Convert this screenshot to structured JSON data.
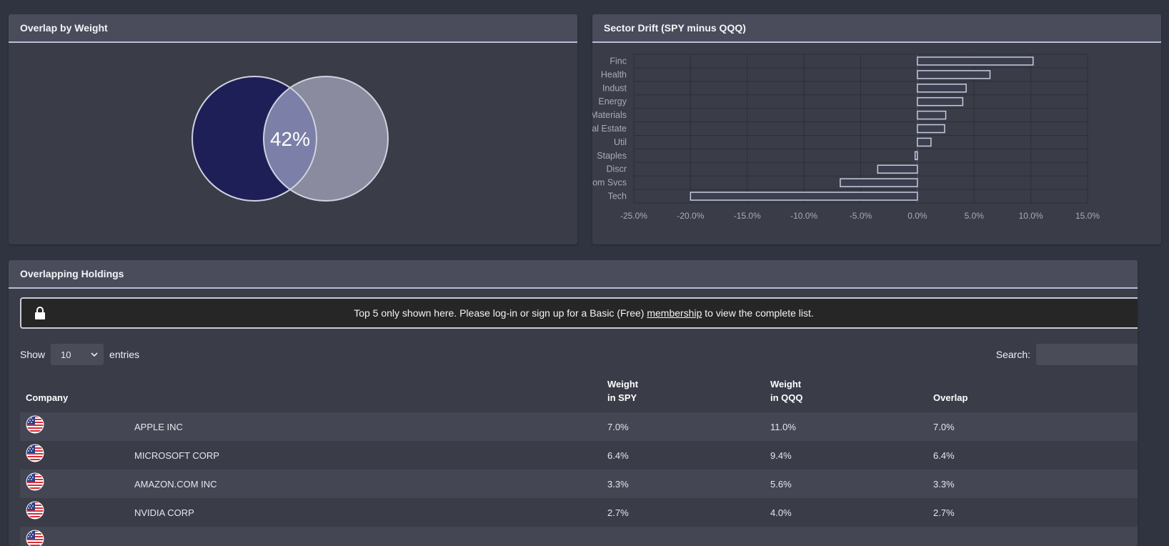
{
  "venn_panel": {
    "title": "Overlap by Weight",
    "overlap_label": "42%"
  },
  "drift_panel": {
    "title": "Sector Drift (SPY minus QQQ)",
    "chart_data": {
      "type": "bar",
      "orientation": "horizontal",
      "categories": [
        "Finc",
        "Health",
        "Indust",
        "Energy",
        "Materials",
        "Real Estate",
        "Util",
        "Staples",
        "Discr",
        "Com Svcs",
        "Tech"
      ],
      "values": [
        10.2,
        6.4,
        4.3,
        4.0,
        2.5,
        2.4,
        1.2,
        -0.2,
        -3.5,
        -6.8,
        -20.0
      ],
      "xlim": [
        -25,
        15
      ],
      "xticks": [
        "-25.0%",
        "-20.0%",
        "-15.0%",
        "-10.0%",
        "-5.0%",
        "0.0%",
        "5.0%",
        "10.0%",
        "15.0%"
      ],
      "xtick_values": [
        -25,
        -20,
        -15,
        -10,
        -5,
        0,
        5,
        10,
        15
      ],
      "grid": true,
      "colors": {
        "bar_fill": "#3b3e4c",
        "bar_stroke": "#c8cbe0"
      }
    }
  },
  "holdings_panel": {
    "title": "Overlapping Holdings",
    "notice": {
      "before": "Top 5 only shown here. Please log-in or sign up for a Basic (Free) ",
      "link": "membership",
      "after": " to view the complete list."
    },
    "show_label": "Show",
    "entries_value": "10",
    "entries_label": "entries",
    "search_label": "Search:",
    "search_value": "",
    "columns": {
      "company": "Company",
      "spy_line1": "Weight",
      "spy_line2": "in SPY",
      "qqq_line1": "Weight",
      "qqq_line2": "in QQQ",
      "overlap": "Overlap"
    },
    "rows": [
      {
        "flag": "us-flag-icon",
        "name": "APPLE INC",
        "spy": "7.0%",
        "qqq": "11.0%",
        "overlap": "7.0%"
      },
      {
        "flag": "us-flag-icon",
        "name": "MICROSOFT CORP",
        "spy": "6.4%",
        "qqq": "9.4%",
        "overlap": "6.4%"
      },
      {
        "flag": "us-flag-icon",
        "name": "AMAZON.COM INC",
        "spy": "3.3%",
        "qqq": "5.6%",
        "overlap": "3.3%"
      },
      {
        "flag": "us-flag-icon",
        "name": "NVIDIA CORP",
        "spy": "2.7%",
        "qqq": "4.0%",
        "overlap": "2.7%"
      },
      {
        "flag": "us-flag-icon",
        "name": "",
        "spy": "",
        "qqq": "",
        "overlap": ""
      }
    ]
  },
  "colors": {
    "venn_left": "#1e1f57",
    "venn_right": "#8a8b9e",
    "venn_overlap": "#7c7fa8",
    "venn_stroke": "#d0d2e0"
  }
}
